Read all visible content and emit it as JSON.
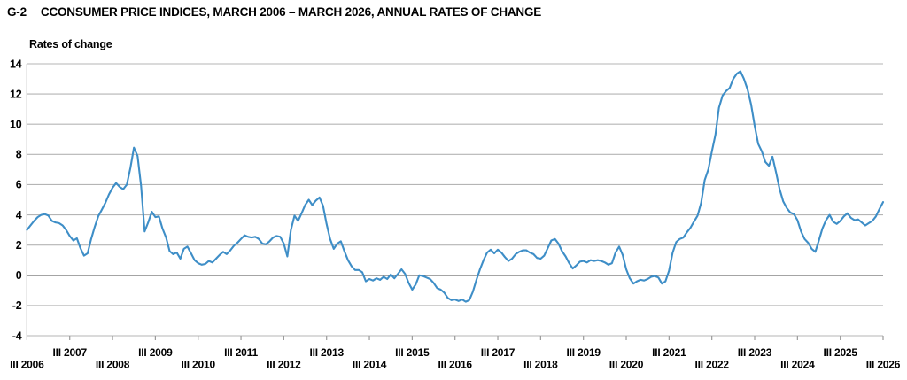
{
  "header": {
    "figure_number": "G-2",
    "title": "CCONSUMER PRICE INDICES, MARCH 2006 – MARCH 2026, ANNUAL RATES OF CHANGE"
  },
  "colors": {
    "background": "#ffffff",
    "line": "#3e8ec7",
    "grid": "#b5b5b5",
    "zero_line": "#6e6e6e",
    "axis": "#9a9a9a",
    "text": "#000000"
  },
  "chart_data": {
    "type": "line",
    "title": "G-2 CCONSUMER PRICE INDICES, MARCH 2006 – MARCH 2026, ANNUAL RATES OF CHANGE",
    "ylabel": "Rates of change",
    "xlabel": "",
    "ylim": [
      -4,
      14
    ],
    "grid": true,
    "legend": "none",
    "yticks": [
      14,
      12,
      10,
      8,
      6,
      4,
      2,
      0,
      -2,
      -4
    ],
    "x_tick_labels": [
      "III 2006",
      "III 2007",
      "III 2008",
      "III 2009",
      "III 2010",
      "III 2011",
      "III 2012",
      "III 2013",
      "III 2014",
      "III 2015",
      "III 2016",
      "III 2017",
      "III 2018",
      "III 2019",
      "III 2020",
      "III 2021",
      "III 2022",
      "III 2023",
      "III 2024",
      "III 2025",
      "III 2026"
    ],
    "x_start_month": "2006-03",
    "x_end_month": "2026-03",
    "frequency": "monthly",
    "series": [
      {
        "name": "Consumer price index, annual rate of change (%)",
        "values": [
          3.0,
          3.3,
          3.6,
          3.85,
          4.0,
          4.05,
          3.95,
          3.6,
          3.5,
          3.45,
          3.3,
          3.0,
          2.6,
          2.3,
          2.45,
          1.8,
          1.3,
          1.45,
          2.4,
          3.2,
          3.9,
          4.35,
          4.8,
          5.35,
          5.8,
          6.1,
          5.85,
          5.7,
          6.0,
          7.1,
          8.45,
          7.9,
          5.9,
          2.9,
          3.5,
          4.2,
          3.85,
          3.9,
          3.1,
          2.5,
          1.6,
          1.4,
          1.5,
          1.1,
          1.75,
          1.9,
          1.45,
          1.0,
          0.8,
          0.7,
          0.75,
          0.95,
          0.85,
          1.1,
          1.35,
          1.55,
          1.4,
          1.65,
          1.95,
          2.15,
          2.4,
          2.65,
          2.55,
          2.5,
          2.55,
          2.4,
          2.1,
          2.05,
          2.25,
          2.5,
          2.6,
          2.55,
          2.1,
          1.25,
          3.0,
          3.95,
          3.6,
          4.1,
          4.65,
          5.0,
          4.65,
          4.95,
          5.15,
          4.6,
          3.4,
          2.4,
          1.75,
          2.1,
          2.25,
          1.6,
          1.0,
          0.6,
          0.35,
          0.35,
          0.2,
          -0.4,
          -0.25,
          -0.35,
          -0.2,
          -0.3,
          -0.1,
          -0.25,
          0.05,
          -0.2,
          0.1,
          0.4,
          0.1,
          -0.5,
          -0.95,
          -0.6,
          0.0,
          -0.05,
          -0.15,
          -0.25,
          -0.5,
          -0.85,
          -0.95,
          -1.15,
          -1.5,
          -1.65,
          -1.6,
          -1.7,
          -1.6,
          -1.75,
          -1.65,
          -1.1,
          -0.3,
          0.4,
          1.0,
          1.5,
          1.7,
          1.45,
          1.7,
          1.5,
          1.2,
          0.95,
          1.1,
          1.4,
          1.55,
          1.65,
          1.65,
          1.5,
          1.4,
          1.15,
          1.1,
          1.3,
          1.8,
          2.3,
          2.4,
          2.1,
          1.6,
          1.25,
          0.8,
          0.45,
          0.65,
          0.9,
          0.95,
          0.85,
          1.0,
          0.95,
          1.0,
          0.95,
          0.85,
          0.7,
          0.8,
          1.5,
          1.9,
          1.35,
          0.4,
          -0.2,
          -0.55,
          -0.4,
          -0.3,
          -0.35,
          -0.25,
          -0.1,
          -0.05,
          -0.15,
          -0.55,
          -0.4,
          0.3,
          1.5,
          2.2,
          2.4,
          2.5,
          2.85,
          3.15,
          3.55,
          3.95,
          4.8,
          6.3,
          7.0,
          8.2,
          9.3,
          11.1,
          11.9,
          12.2,
          12.4,
          13.0,
          13.35,
          13.5,
          13.0,
          12.3,
          11.3,
          9.9,
          8.7,
          8.2,
          7.5,
          7.25,
          7.85,
          6.8,
          5.7,
          4.9,
          4.45,
          4.15,
          4.05,
          3.65,
          2.9,
          2.4,
          2.15,
          1.75,
          1.55,
          2.3,
          3.1,
          3.65,
          4.0,
          3.55,
          3.4,
          3.6,
          3.9,
          4.1,
          3.8,
          3.65,
          3.7,
          3.5,
          3.3,
          3.45,
          3.6,
          3.9,
          4.4,
          4.85
        ]
      }
    ]
  }
}
